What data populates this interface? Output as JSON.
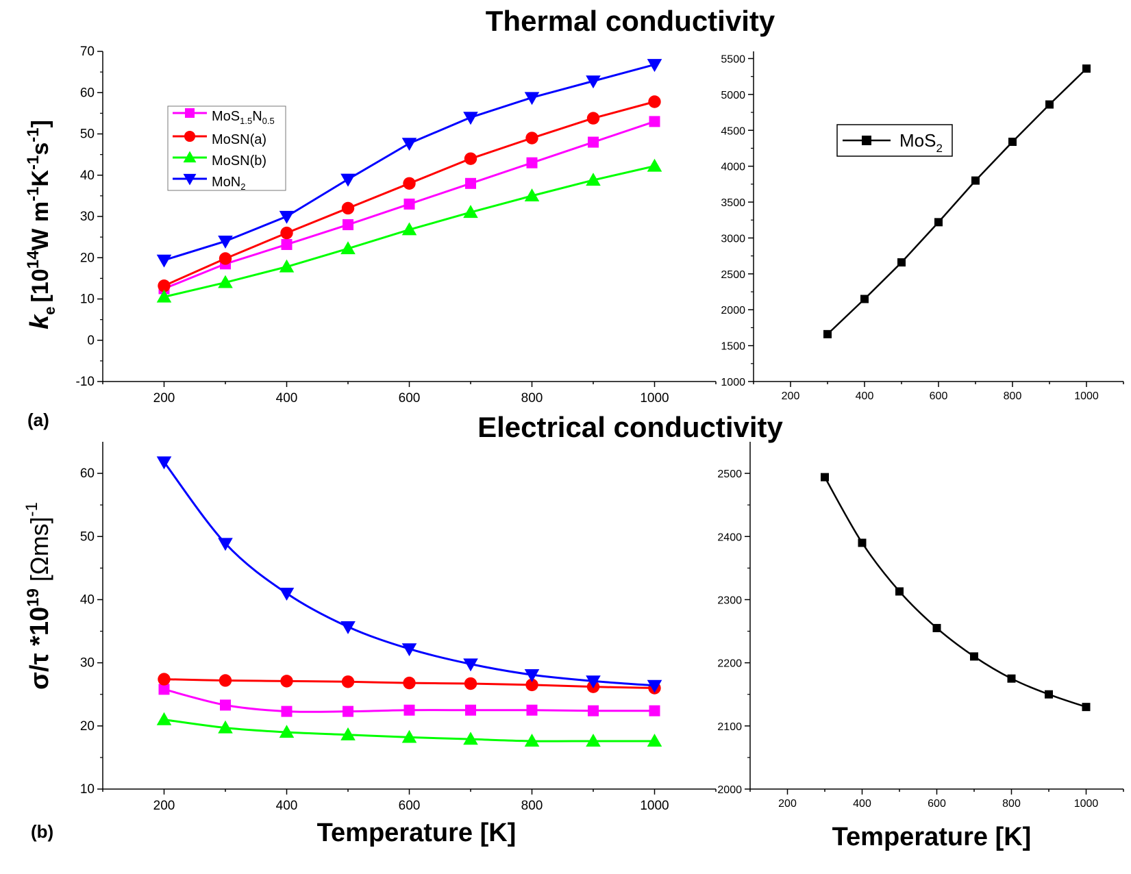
{
  "titles": {
    "thermal": "Thermal conductivity",
    "electrical": "Electrical conductivity"
  },
  "panel_labels": {
    "a": "(a)",
    "b": "(b)"
  },
  "xlabels": {
    "bottom_left": "Temperature [K]",
    "bottom_right": "Temperature [K]"
  },
  "ylabels": {
    "thermal": {
      "k": "k",
      "e": "e",
      "bracket": "[10",
      "exp14": "14",
      "W": "W m",
      "m1": "-1",
      "K": "K",
      "m1b": "-1",
      "s": "s",
      "m1c": "-1",
      "close": "]"
    },
    "electrical": {
      "sigma": "σ/τ *10",
      "exp19": "19",
      "unit": " [Ωms]",
      "exp": "-1"
    }
  },
  "colors": {
    "magenta": "#ff00ff",
    "red": "#ff0000",
    "green": "#00ff00",
    "blue": "#0000ff",
    "black": "#000000"
  },
  "legend_a": {
    "items": [
      {
        "base": "MoS",
        "sub1": "1.5",
        "mid": "N",
        "sub2": "0.5",
        "color": "#ff00ff",
        "marker": "square"
      },
      {
        "base": "MoSN(a)",
        "color": "#ff0000",
        "marker": "circle"
      },
      {
        "base": "MoSN(b)",
        "color": "#00ff00",
        "marker": "triangle-up"
      },
      {
        "base": "MoN",
        "sub1": "2",
        "color": "#0000ff",
        "marker": "triangle-down"
      }
    ]
  },
  "legend_mos2": {
    "base": "MoS",
    "sub": "2",
    "color": "#000000",
    "marker": "square"
  },
  "chart_data": [
    {
      "id": "thermal-main",
      "type": "line",
      "title": "Thermal conductivity",
      "xlabel": "",
      "ylabel": "ke [10^14 W m^-1 K^-1 s^-1]",
      "xlim": [
        100,
        1100
      ],
      "ylim": [
        -10,
        70
      ],
      "xticks": [
        200,
        400,
        600,
        800,
        1000
      ],
      "yticks": [
        -10,
        0,
        10,
        20,
        30,
        40,
        50,
        60,
        70
      ],
      "x": [
        200,
        300,
        400,
        500,
        600,
        700,
        800,
        900,
        1000
      ],
      "series": [
        {
          "name": "MoS1.5N0.5",
          "color": "#ff00ff",
          "marker": "square",
          "values": [
            12.5,
            18.5,
            23.2,
            28,
            33,
            38,
            43,
            48,
            53
          ]
        },
        {
          "name": "MoSN(a)",
          "color": "#ff0000",
          "marker": "circle",
          "values": [
            13.2,
            19.8,
            26,
            32,
            38,
            44,
            49,
            53.8,
            57.8
          ]
        },
        {
          "name": "MoSN(b)",
          "color": "#00ff00",
          "marker": "triangle-up",
          "values": [
            10.5,
            14,
            17.8,
            22.2,
            26.8,
            31,
            35,
            38.8,
            42.2
          ]
        },
        {
          "name": "MoN2",
          "color": "#0000ff",
          "marker": "triangle-down",
          "values": [
            19.4,
            24,
            30,
            39,
            47.7,
            54,
            58.8,
            62.8,
            66.8
          ]
        }
      ]
    },
    {
      "id": "thermal-mos2",
      "type": "line",
      "title": "",
      "xlim": [
        100,
        1100
      ],
      "ylim": [
        1000,
        5600
      ],
      "xticks": [
        200,
        400,
        600,
        800,
        1000
      ],
      "yticks": [
        1000,
        1500,
        2000,
        2500,
        3000,
        3500,
        4000,
        4500,
        5000,
        5500
      ],
      "x": [
        300,
        400,
        500,
        600,
        700,
        800,
        900,
        1000
      ],
      "series": [
        {
          "name": "MoS2",
          "color": "#000000",
          "marker": "square",
          "values": [
            1660,
            2150,
            2660,
            3220,
            3800,
            4340,
            4860,
            5360
          ]
        }
      ]
    },
    {
      "id": "electrical-main",
      "type": "line",
      "title": "Electrical conductivity",
      "xlabel": "Temperature [K]",
      "ylabel": "σ/τ *10^19 [Ωms]^-1",
      "xlim": [
        100,
        1100
      ],
      "ylim": [
        10,
        65
      ],
      "xticks": [
        200,
        400,
        600,
        800,
        1000
      ],
      "yticks": [
        10,
        20,
        30,
        40,
        50,
        60
      ],
      "x": [
        200,
        300,
        400,
        500,
        600,
        700,
        800,
        900,
        1000
      ],
      "series": [
        {
          "name": "MoS1.5N0.5",
          "color": "#ff00ff",
          "marker": "square",
          "values": [
            25.8,
            23.3,
            22.3,
            22.3,
            22.5,
            22.5,
            22.5,
            22.4,
            22.4
          ]
        },
        {
          "name": "MoSN(a)",
          "color": "#ff0000",
          "marker": "circle",
          "values": [
            27.4,
            27.2,
            27.1,
            27,
            26.8,
            26.7,
            26.5,
            26.2,
            26
          ]
        },
        {
          "name": "MoSN(b)",
          "color": "#00ff00",
          "marker": "triangle-up",
          "values": [
            21,
            19.7,
            19,
            18.6,
            18.2,
            17.9,
            17.6,
            17.6,
            17.6
          ]
        },
        {
          "name": "MoN2",
          "color": "#0000ff",
          "marker": "triangle-down",
          "values": [
            61.8,
            48.9,
            41,
            35.7,
            32.2,
            29.8,
            28.1,
            27.1,
            26.4
          ]
        }
      ]
    },
    {
      "id": "electrical-mos2",
      "type": "line",
      "title": "",
      "xlabel": "Temperature [K]",
      "xlim": [
        100,
        1100
      ],
      "ylim": [
        2000,
        2550
      ],
      "xticks": [
        200,
        400,
        600,
        800,
        1000
      ],
      "yticks": [
        2000,
        2100,
        2200,
        2300,
        2400,
        2500
      ],
      "x": [
        300,
        400,
        500,
        600,
        700,
        800,
        900,
        1000
      ],
      "series": [
        {
          "name": "MoS2",
          "color": "#000000",
          "marker": "square",
          "values": [
            2494,
            2390,
            2313,
            2255,
            2210,
            2175,
            2150,
            2130
          ]
        }
      ]
    }
  ]
}
